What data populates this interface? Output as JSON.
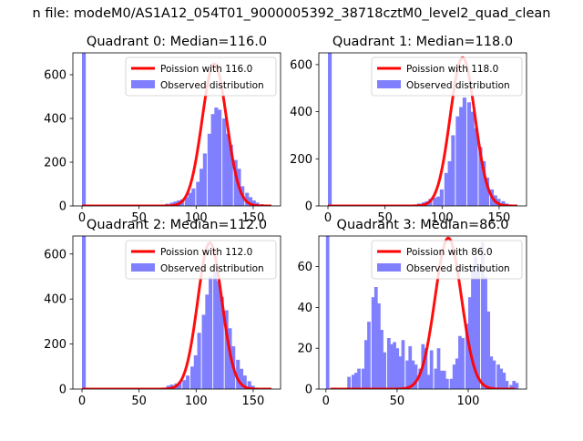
{
  "suptitle": "n file: modeM0/AS1A12_054T01_9000005392_38718cztM0_level2_quad_clean",
  "colors": {
    "hist": "#8080ff",
    "poisson": "#ff0000",
    "axis": "#000000"
  },
  "chart_data": [
    {
      "type": "bar",
      "title": "Quadrant 0: Median=116.0",
      "legend": {
        "placement": "top-right",
        "entries": [
          "Poission with 116.0",
          "Observed distribution"
        ]
      },
      "xlim": [
        -8,
        174
      ],
      "ylim": [
        0,
        700
      ],
      "xticks": [
        0,
        50,
        100,
        150
      ],
      "yticks": [
        0,
        200,
        400,
        600
      ],
      "bin_width": 3.3,
      "bins": [
        [
          0,
          700
        ],
        [
          70,
          5
        ],
        [
          73,
          10
        ],
        [
          77,
          15
        ],
        [
          80,
          20
        ],
        [
          83,
          25
        ],
        [
          86,
          30
        ],
        [
          90,
          40
        ],
        [
          93,
          60
        ],
        [
          96,
          80
        ],
        [
          100,
          110
        ],
        [
          103,
          170
        ],
        [
          106,
          240
        ],
        [
          110,
          330
        ],
        [
          113,
          420
        ],
        [
          116,
          450
        ],
        [
          119,
          440
        ],
        [
          123,
          400
        ],
        [
          126,
          330
        ],
        [
          129,
          280
        ],
        [
          133,
          210
        ],
        [
          136,
          170
        ],
        [
          139,
          90
        ],
        [
          143,
          60
        ],
        [
          146,
          40
        ],
        [
          149,
          25
        ],
        [
          152,
          15
        ],
        [
          156,
          8
        ],
        [
          160,
          4
        ]
      ],
      "poisson": {
        "mean": 116.0,
        "peak": 650
      }
    },
    {
      "type": "bar",
      "title": "Quadrant 1: Median=118.0",
      "legend": {
        "placement": "top-right",
        "entries": [
          "Poission with 118.0",
          "Observed distribution"
        ]
      },
      "xlim": [
        -8,
        174
      ],
      "ylim": [
        0,
        650
      ],
      "xticks": [
        0,
        50,
        100,
        150
      ],
      "yticks": [
        0,
        200,
        400,
        600
      ],
      "bin_width": 3.3,
      "bins": [
        [
          0,
          650
        ],
        [
          75,
          5
        ],
        [
          78,
          10
        ],
        [
          82,
          15
        ],
        [
          85,
          20
        ],
        [
          88,
          30
        ],
        [
          92,
          35
        ],
        [
          95,
          40
        ],
        [
          98,
          70
        ],
        [
          102,
          140
        ],
        [
          105,
          190
        ],
        [
          108,
          300
        ],
        [
          112,
          380
        ],
        [
          115,
          420
        ],
        [
          118,
          460
        ],
        [
          122,
          440
        ],
        [
          125,
          400
        ],
        [
          128,
          330
        ],
        [
          132,
          250
        ],
        [
          135,
          190
        ],
        [
          138,
          120
        ],
        [
          142,
          70
        ],
        [
          145,
          45
        ],
        [
          148,
          30
        ],
        [
          152,
          20
        ],
        [
          155,
          10
        ],
        [
          158,
          5
        ]
      ],
      "poisson": {
        "mean": 118.0,
        "peak": 630
      }
    },
    {
      "type": "bar",
      "title": "Quadrant 2: Median=112.0",
      "legend": {
        "placement": "top-right",
        "entries": [
          "Poission with 112.0",
          "Observed distribution"
        ]
      },
      "xlim": [
        -8,
        174
      ],
      "ylim": [
        0,
        680
      ],
      "xticks": [
        0,
        50,
        100,
        150
      ],
      "yticks": [
        0,
        200,
        400,
        600
      ],
      "bin_width": 3.3,
      "bins": [
        [
          0,
          680
        ],
        [
          70,
          5
        ],
        [
          74,
          15
        ],
        [
          77,
          20
        ],
        [
          81,
          25
        ],
        [
          84,
          30
        ],
        [
          88,
          40
        ],
        [
          91,
          60
        ],
        [
          95,
          100
        ],
        [
          98,
          150
        ],
        [
          101,
          250
        ],
        [
          105,
          330
        ],
        [
          108,
          420
        ],
        [
          111,
          500
        ],
        [
          115,
          520
        ],
        [
          118,
          480
        ],
        [
          121,
          410
        ],
        [
          125,
          350
        ],
        [
          128,
          270
        ],
        [
          131,
          190
        ],
        [
          135,
          130
        ],
        [
          138,
          90
        ],
        [
          141,
          60
        ],
        [
          145,
          35
        ],
        [
          148,
          15
        ],
        [
          152,
          5
        ]
      ],
      "poisson": {
        "mean": 112.0,
        "peak": 650
      }
    },
    {
      "type": "bar",
      "title": "Quadrant 3: Median=86.0",
      "legend": {
        "placement": "top-right",
        "entries": [
          "Poission with 86.0",
          "Observed distribution"
        ]
      },
      "xlim": [
        -5,
        141
      ],
      "ylim": [
        0,
        75
      ],
      "xticks": [
        0,
        50,
        100
      ],
      "yticks": [
        0,
        20,
        40,
        60
      ],
      "bin_width": 2.4,
      "bins": [
        [
          0,
          75
        ],
        [
          15,
          6
        ],
        [
          18,
          7
        ],
        [
          20,
          8
        ],
        [
          22,
          10
        ],
        [
          25,
          10
        ],
        [
          27,
          24
        ],
        [
          29,
          33
        ],
        [
          32,
          45
        ],
        [
          34,
          50
        ],
        [
          36,
          42
        ],
        [
          38,
          29
        ],
        [
          40,
          18
        ],
        [
          43,
          25
        ],
        [
          45,
          22
        ],
        [
          47,
          23
        ],
        [
          49,
          20
        ],
        [
          51,
          16
        ],
        [
          53,
          24
        ],
        [
          56,
          14
        ],
        [
          58,
          21
        ],
        [
          60,
          14
        ],
        [
          62,
          12
        ],
        [
          65,
          10
        ],
        [
          67,
          22
        ],
        [
          69,
          20
        ],
        [
          71,
          7
        ],
        [
          73,
          19
        ],
        [
          76,
          10
        ],
        [
          78,
          20
        ],
        [
          80,
          9
        ],
        [
          82,
          9
        ],
        [
          84,
          5
        ],
        [
          87,
          5
        ],
        [
          89,
          12
        ],
        [
          91,
          15
        ],
        [
          93,
          26
        ],
        [
          95,
          25
        ],
        [
          98,
          32
        ],
        [
          100,
          45
        ],
        [
          102,
          60
        ],
        [
          104,
          65
        ],
        [
          106,
          60
        ],
        [
          109,
          72
        ],
        [
          111,
          55
        ],
        [
          113,
          38
        ],
        [
          115,
          16
        ],
        [
          117,
          14
        ],
        [
          120,
          12
        ],
        [
          122,
          10
        ],
        [
          124,
          8
        ],
        [
          126,
          4
        ],
        [
          129,
          2
        ],
        [
          131,
          4
        ],
        [
          133,
          3
        ]
      ],
      "poisson": {
        "mean": 86.0,
        "peak": 74
      }
    }
  ]
}
